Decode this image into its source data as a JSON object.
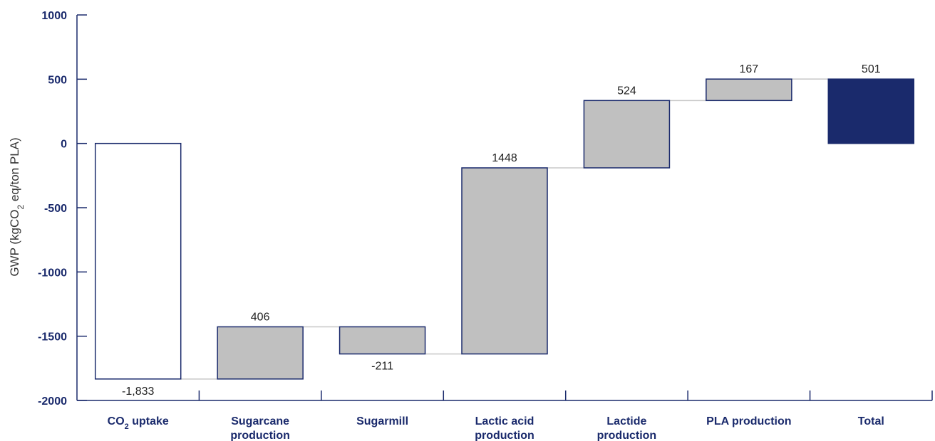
{
  "chart_data": {
    "type": "bar",
    "subtype": "waterfall",
    "ylabel": "GWP (kgCO2 eq/ton PLA)",
    "ylabel_parts": {
      "before": "GWP (kgCO",
      "sub": "2",
      "after": " eq/ton PLA)"
    },
    "ylim": [
      -2000,
      1000
    ],
    "yticks": [
      1000,
      500,
      0,
      -500,
      -1000,
      -1500,
      -2000
    ],
    "ytick_labels": [
      "1000",
      "500",
      "0",
      "-500",
      "-1000",
      "-1500",
      "-2000"
    ],
    "categories": [
      {
        "lines": [
          "CO2 uptake"
        ],
        "sub": {
          "before": "CO",
          "sub": "2",
          "after": " uptake"
        }
      },
      {
        "lines": [
          "Sugarcane",
          "production"
        ]
      },
      {
        "lines": [
          "Sugarmill"
        ]
      },
      {
        "lines": [
          "Lactic acid",
          "production"
        ]
      },
      {
        "lines": [
          "Lactide",
          "production"
        ]
      },
      {
        "lines": [
          "PLA production"
        ]
      },
      {
        "lines": [
          "Total"
        ]
      }
    ],
    "bars": [
      {
        "start": 0,
        "end": -1833,
        "label": "-1,833",
        "label_pos": "below",
        "style": "outline"
      },
      {
        "start": -1833,
        "end": -1427,
        "label": "406",
        "label_pos": "above",
        "style": "increase"
      },
      {
        "start": -1427,
        "end": -1638,
        "label": "-211",
        "label_pos": "below",
        "style": "increase"
      },
      {
        "start": -1638,
        "end": -190,
        "label": "1448",
        "label_pos": "above",
        "style": "increase"
      },
      {
        "start": -190,
        "end": 334,
        "label": "524",
        "label_pos": "above",
        "style": "increase"
      },
      {
        "start": 334,
        "end": 501,
        "label": "167",
        "label_pos": "above",
        "style": "increase"
      },
      {
        "start": 0,
        "end": 501,
        "label": "501",
        "label_pos": "above",
        "style": "total"
      }
    ],
    "colors": {
      "axis": "#1a2a6c",
      "bar_fill": "#c0c0c0",
      "bar_stroke": "#1a2a6c",
      "total_fill": "#1a2a6c",
      "outline_fill": "#ffffff",
      "connector": "#c8c8c8"
    },
    "grid": false,
    "legend": "none"
  }
}
